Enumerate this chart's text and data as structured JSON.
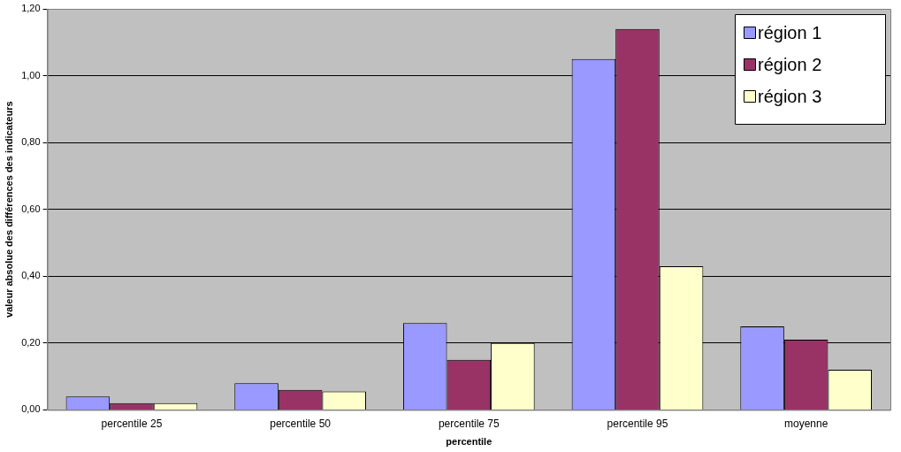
{
  "chart_data": {
    "type": "bar",
    "xlabel": "percentile",
    "ylabel": "valeur absolue des différences des indicateurs",
    "categories": [
      "percentile 25",
      "percentile 50",
      "percentile 75",
      "percentile 95",
      "moyenne"
    ],
    "series": [
      {
        "name": "région 1",
        "color": "#9999ff",
        "values": [
          0.04,
          0.08,
          0.26,
          1.05,
          0.25
        ]
      },
      {
        "name": "région 2",
        "color": "#993366",
        "values": [
          0.02,
          0.06,
          0.15,
          1.14,
          0.21
        ]
      },
      {
        "name": "région 3",
        "color": "#ffffcc",
        "values": [
          0.02,
          0.055,
          0.2,
          0.43,
          0.12
        ]
      }
    ],
    "ylim": [
      0,
      1.2
    ],
    "yticks": [
      {
        "value": 0,
        "label": "0,00"
      },
      {
        "value": 0.2,
        "label": "0,20"
      },
      {
        "value": 0.4,
        "label": "0,40"
      },
      {
        "value": 0.6,
        "label": "0,60"
      },
      {
        "value": 0.8,
        "label": "0,80"
      },
      {
        "value": 1,
        "label": "1,00"
      },
      {
        "value": 1.2,
        "label": "1,20"
      }
    ],
    "grid": "y",
    "legend": "top right"
  }
}
